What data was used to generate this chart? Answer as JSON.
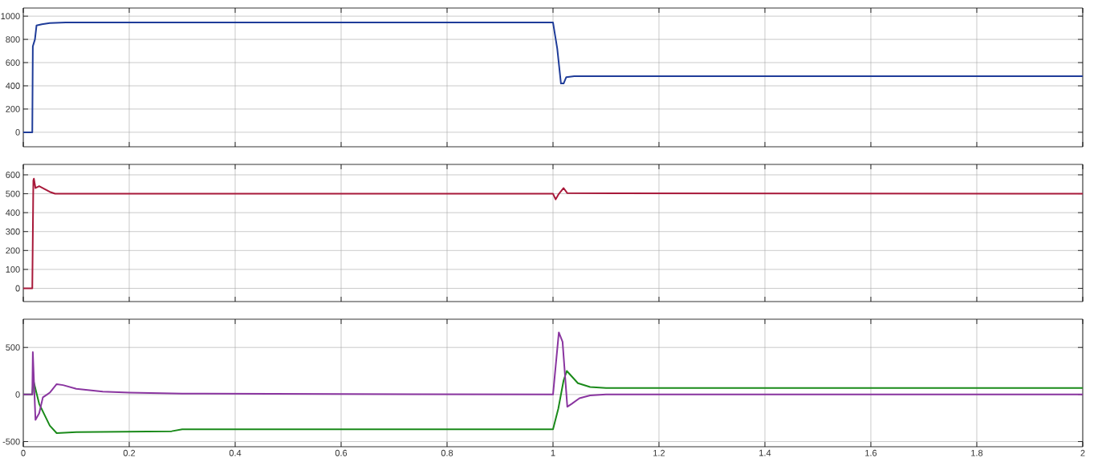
{
  "chart_data": [
    {
      "type": "line",
      "xlim": [
        0,
        2
      ],
      "ylim": [
        -125,
        1070
      ],
      "xticks": [
        0,
        0.2,
        0.4,
        0.6,
        0.8,
        1,
        1.2,
        1.4,
        1.6,
        1.8,
        2
      ],
      "yticks": [
        0,
        200,
        400,
        600,
        800,
        1000
      ],
      "grid": true,
      "tick_labels": "y",
      "series": [
        {
          "color": "#1f3c99",
          "x": [
            0,
            0.017,
            0.018,
            0.022,
            0.025,
            0.035,
            0.05,
            0.08,
            0.3,
            1.0,
            1.008,
            1.015,
            1.02,
            1.025,
            1.04,
            2
          ],
          "values": [
            0,
            0,
            740,
            800,
            920,
            930,
            940,
            945,
            945,
            945,
            720,
            420,
            420,
            475,
            483,
            483
          ]
        }
      ]
    },
    {
      "type": "line",
      "xlim": [
        0,
        2
      ],
      "ylim": [
        -70,
        655
      ],
      "xticks": [
        0,
        0.2,
        0.4,
        0.6,
        0.8,
        1,
        1.2,
        1.4,
        1.6,
        1.8,
        2
      ],
      "yticks": [
        0,
        100,
        200,
        300,
        400,
        500,
        600
      ],
      "grid": true,
      "tick_labels": "y",
      "series": [
        {
          "color": "#a8193a",
          "x": [
            0,
            0.017,
            0.019,
            0.02,
            0.023,
            0.03,
            0.04,
            0.05,
            0.06,
            1.0,
            1.005,
            1.01,
            1.02,
            1.027,
            2
          ],
          "values": [
            0,
            0,
            570,
            580,
            530,
            540,
            525,
            510,
            500,
            500,
            470,
            495,
            530,
            503,
            500
          ]
        }
      ]
    },
    {
      "type": "line",
      "xlim": [
        0,
        2
      ],
      "ylim": [
        -555,
        800
      ],
      "xticks": [
        0,
        0.2,
        0.4,
        0.6,
        0.8,
        1,
        1.2,
        1.4,
        1.6,
        1.8,
        2
      ],
      "yticks": [
        -500,
        0,
        500
      ],
      "grid": true,
      "series": [
        {
          "color": "#1a8a1a",
          "x": [
            0,
            0.017,
            0.019,
            0.03,
            0.05,
            0.063,
            0.1,
            0.28,
            0.3,
            0.4,
            1.0,
            1.01,
            1.02,
            1.026,
            1.047,
            1.07,
            1.1,
            2
          ],
          "values": [
            0,
            0,
            150,
            -100,
            -330,
            -410,
            -400,
            -390,
            -370,
            -370,
            -370,
            -150,
            150,
            250,
            120,
            80,
            70,
            70
          ]
        },
        {
          "color": "#8a35a0",
          "x": [
            0,
            0.017,
            0.018,
            0.023,
            0.03,
            0.037,
            0.045,
            0.05,
            0.063,
            0.075,
            0.1,
            0.15,
            0.2,
            0.3,
            1.0,
            1.011,
            1.018,
            1.027,
            1.035,
            1.05,
            1.07,
            1.1,
            2
          ],
          "values": [
            0,
            0,
            450,
            -270,
            -200,
            -30,
            0,
            20,
            110,
            100,
            60,
            30,
            20,
            10,
            0,
            660,
            560,
            -130,
            -100,
            -40,
            -10,
            0,
            0
          ]
        }
      ]
    }
  ]
}
